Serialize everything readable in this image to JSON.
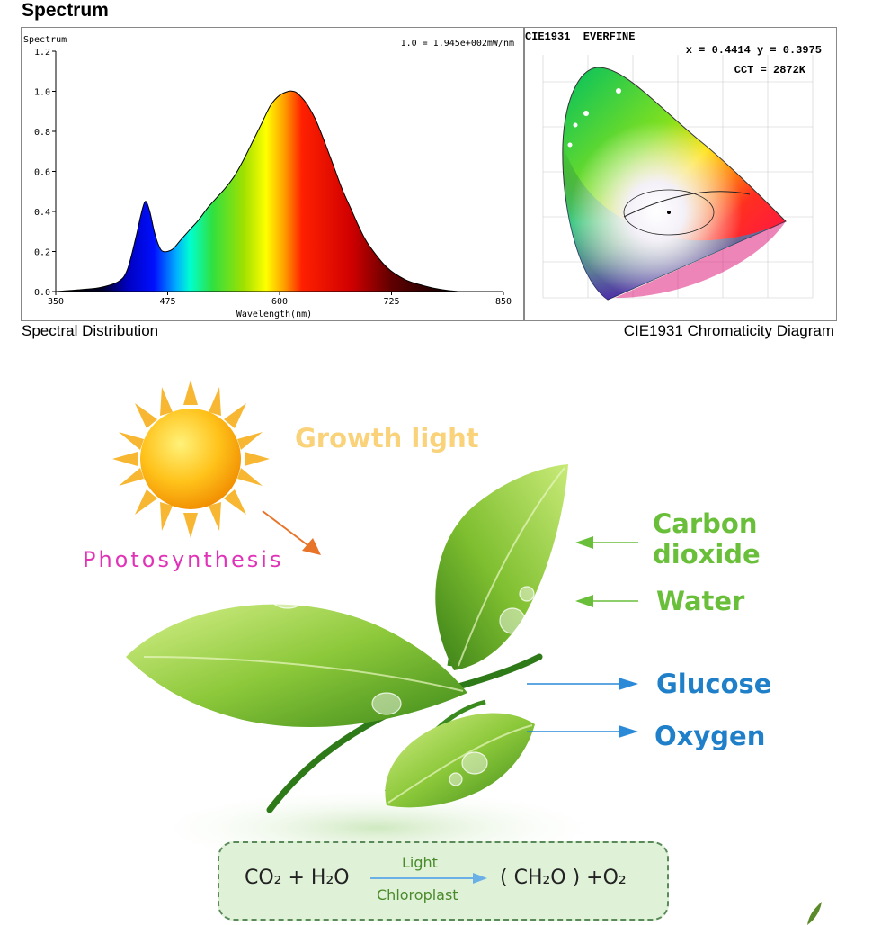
{
  "header": {
    "title": "Spectrum"
  },
  "spectrum_caption": "Spectral Distribution",
  "cie_caption": "CIE1931 Chromaticity Diagram",
  "cie": {
    "heading": "CIE1931  EVERFINE",
    "xy_readout": "x = 0.4414 y = 0.3975",
    "cct_readout": "CCT = 2872K"
  },
  "chart_data": {
    "type": "area",
    "title": "Spectrum",
    "annotation": "1.0 = 1.945e+002mW/nm",
    "xlabel": "Wavelength(nm)",
    "ylabel": "",
    "xlim": [
      350,
      850
    ],
    "ylim": [
      0,
      1.2
    ],
    "x_ticks": [
      "350",
      "475",
      "600",
      "725",
      "850"
    ],
    "y_ticks": [
      "0.0",
      "0.2",
      "0.4",
      "0.6",
      "0.8",
      "1.0",
      "1.2"
    ],
    "grid": false,
    "series": [
      {
        "x": [
          350,
          380,
          400,
          420,
          430,
          440,
          445,
          450,
          455,
          460,
          465,
          470,
          480,
          490,
          500,
          510,
          520,
          530,
          540,
          550,
          560,
          570,
          580,
          590,
          600,
          610,
          615,
          620,
          630,
          640,
          650,
          660,
          670,
          680,
          690,
          700,
          720,
          740,
          760,
          780,
          800,
          820,
          850
        ],
        "values": [
          0.0,
          0.01,
          0.02,
          0.05,
          0.11,
          0.28,
          0.38,
          0.45,
          0.4,
          0.3,
          0.23,
          0.2,
          0.21,
          0.26,
          0.31,
          0.36,
          0.42,
          0.47,
          0.52,
          0.58,
          0.66,
          0.75,
          0.84,
          0.93,
          0.98,
          1.0,
          1.0,
          0.99,
          0.94,
          0.86,
          0.75,
          0.63,
          0.51,
          0.41,
          0.31,
          0.23,
          0.12,
          0.06,
          0.03,
          0.01,
          0.0,
          0.0,
          0.0
        ]
      }
    ]
  },
  "illustration": {
    "growth_light": "Growth light",
    "photosynthesis": "Photosynthesis",
    "inputs": [
      "Carbon",
      "dioxide",
      "Water"
    ],
    "outputs": [
      "Glucose",
      "Oxygen"
    ],
    "formula": {
      "left": "CO₂ + H₂O",
      "above_arrow": "Light",
      "below_arrow": "Chloroplast",
      "right": "( CH₂O ) +O₂"
    }
  }
}
